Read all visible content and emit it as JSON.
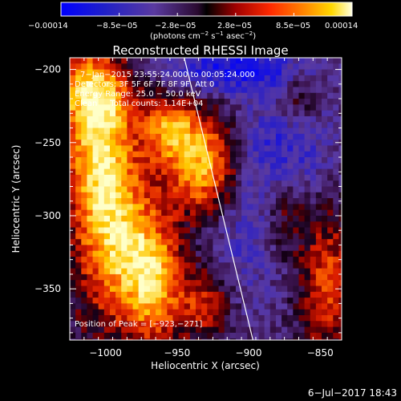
{
  "chart_data": {
    "type": "heatmap",
    "title": "Reconstructed RHESSI Image",
    "xlabel": "Heliocentric X (arcsec)",
    "ylabel": "Heliocentric Y (arcsec)",
    "xlim": [
      -1025,
      -835
    ],
    "ylim": [
      -385,
      -192
    ],
    "x_ticks": [
      -1000,
      -950,
      -900,
      -850
    ],
    "x_tick_labels": [
      "−1000",
      "−950",
      "−900",
      "−850"
    ],
    "y_ticks": [
      -200,
      -250,
      -300,
      -350
    ],
    "y_tick_labels": [
      "−200",
      "−250",
      "−300",
      "−350"
    ],
    "colorbar": {
      "min": -0.00014,
      "max": 0.00014,
      "tick_labels": [
        "−0.00014",
        "−8.5e−05",
        "−2.8e−05",
        "2.8e−05",
        "8.5e−05",
        "0.00014"
      ],
      "units_parts": [
        "(photons cm",
        "−2",
        " s",
        "−1",
        " asec",
        "−2",
        ")"
      ]
    },
    "annotations": {
      "line1": "7−Jan−2015 23:55:24.000 to 00:05:24.000",
      "line2": "Detectors: 3F 5F 6F 7F 8F 9F, Att 0",
      "line3": "Energy Range: 25.0 − 50.0 keV",
      "line4": "Clean     Total counts: 1.14E+04",
      "peak": "Position of Peak = [−923,−271]"
    },
    "peak": {
      "x": -923,
      "y": -271
    },
    "limb_line": [
      {
        "x": -945,
        "y": -192
      },
      {
        "x": -897,
        "y": -385
      }
    ],
    "sources": [
      {
        "x": -930,
        "y": -268,
        "sx": 18,
        "sy": 25,
        "amp": 1.0
      },
      {
        "x": -955,
        "y": -240,
        "sx": 14,
        "sy": 16,
        "amp": 0.7
      },
      {
        "x": -1005,
        "y": -255,
        "sx": 16,
        "sy": 40,
        "amp": 0.85
      },
      {
        "x": -990,
        "y": -320,
        "sx": 20,
        "sy": 40,
        "amp": 0.8
      },
      {
        "x": -965,
        "y": -345,
        "sx": 14,
        "sy": 28,
        "amp": 0.75
      },
      {
        "x": -1010,
        "y": -215,
        "sx": 20,
        "sy": 18,
        "amp": 0.65
      },
      {
        "x": -930,
        "y": -360,
        "sx": 12,
        "sy": 18,
        "amp": 0.55
      },
      {
        "x": -845,
        "y": -345,
        "sx": 14,
        "sy": 35,
        "amp": 0.6
      },
      {
        "x": -875,
        "y": -300,
        "sx": 12,
        "sy": 22,
        "amp": 0.45
      },
      {
        "x": -865,
        "y": -220,
        "sx": 10,
        "sy": 14,
        "amp": 0.4
      }
    ],
    "negative_regions": [
      {
        "x": -910,
        "y": -200,
        "sx": 40,
        "sy": 12,
        "amp": 0.6
      },
      {
        "x": -900,
        "y": -300,
        "sx": 30,
        "sy": 45,
        "amp": 0.4
      },
      {
        "x": -870,
        "y": -250,
        "sx": 25,
        "sy": 25,
        "amp": 0.35
      }
    ]
  },
  "footer": {
    "date": "6−Jul−2017 18:43"
  }
}
